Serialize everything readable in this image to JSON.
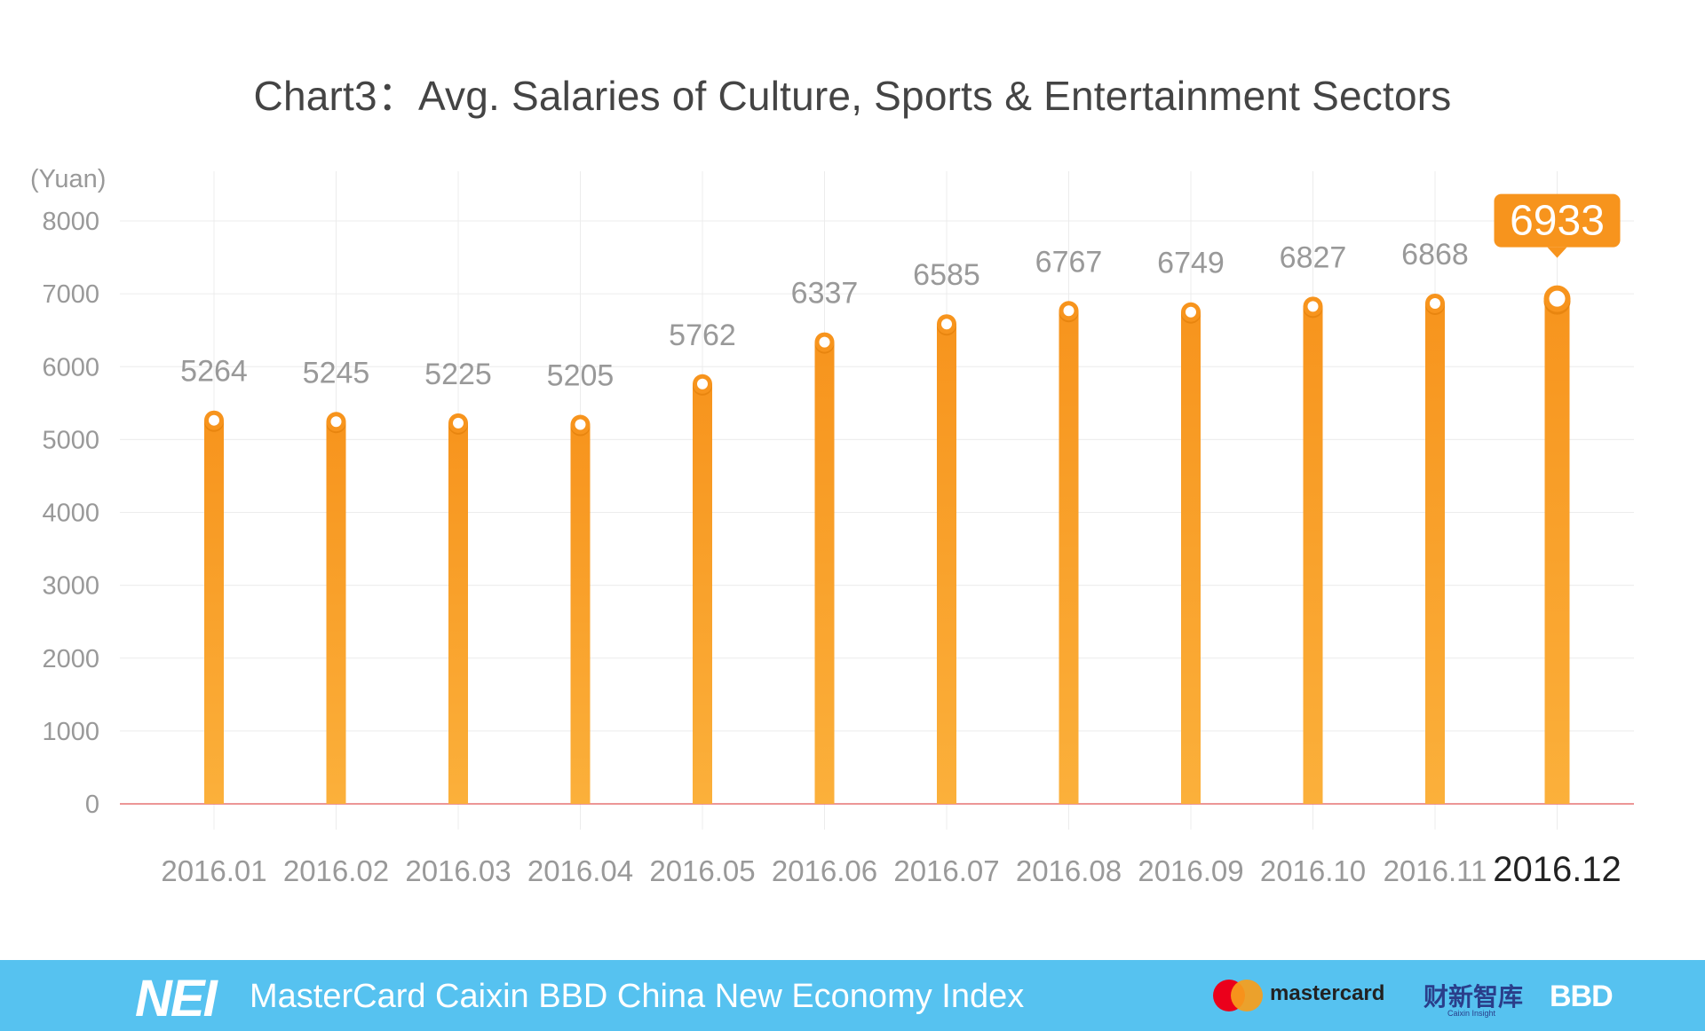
{
  "chart_data": {
    "type": "bar",
    "title": "Chart3：Avg. Salaries of Culture, Sports & Entertainment Sectors",
    "ylabel": "(Yuan)",
    "xlabel": "",
    "ylim": [
      0,
      8000
    ],
    "yticks": [
      "0",
      "1000",
      "2000",
      "3000",
      "4000",
      "5000",
      "6000",
      "7000",
      "8000"
    ],
    "categories": [
      "2016.01",
      "2016.02",
      "2016.03",
      "2016.04",
      "2016.05",
      "2016.06",
      "2016.07",
      "2016.08",
      "2016.09",
      "2016.10",
      "2016.11",
      "2016.12"
    ],
    "values": [
      5264,
      5245,
      5225,
      5205,
      5762,
      6337,
      6585,
      6767,
      6749,
      6827,
      6868,
      6933
    ],
    "highlight_index": 11,
    "grid": true,
    "colors": {
      "bar_top": "#f7941d",
      "bar_bottom": "#fbb03b",
      "highlight_callout": "#f7941d",
      "grid": "#ececec",
      "baseline": "#e57373",
      "label": "#999999",
      "highlight_label": "#222222"
    }
  },
  "footer": {
    "brand": "NEI",
    "index_name": "MasterCard Caixin BBD China New Economy Index",
    "partner1": "mastercard",
    "partner2": "财新智库",
    "partner2_sub": "Caixin Insight",
    "partner3": "BBD",
    "background": "#56c2f0"
  }
}
